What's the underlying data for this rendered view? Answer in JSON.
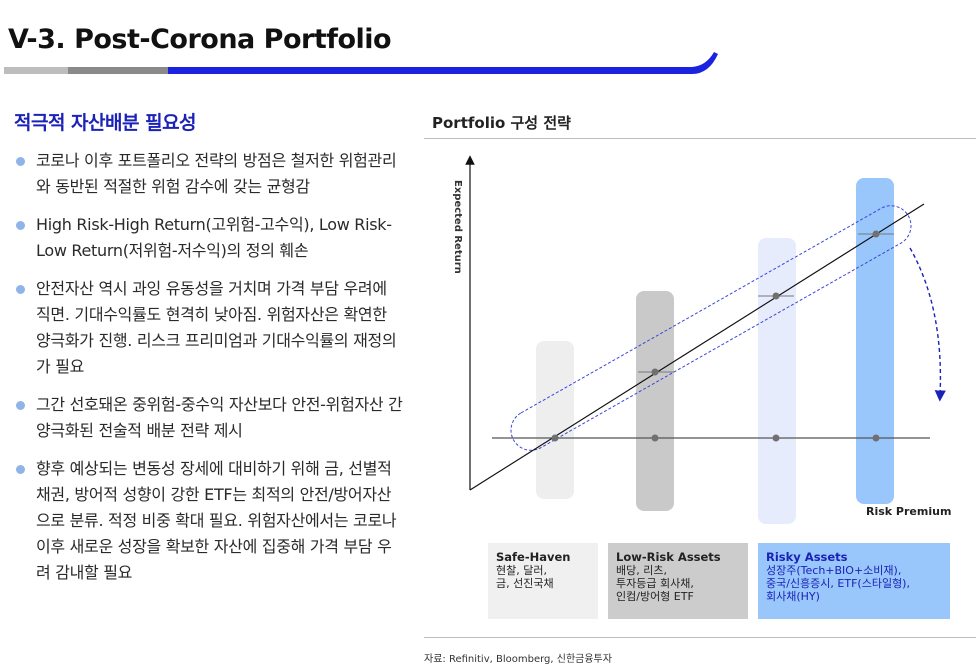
{
  "slide": {
    "title": "V-3. Post-Corona Portfolio"
  },
  "left": {
    "section_title": "적극적 자산배분 필요성",
    "bullets": [
      "코로나 이후 포트폴리오 전략의 방점은 철저한 위험관리와 동반된 적절한 위험 감수에 갖는 균형감",
      "High Risk-High Return(고위험-고수익), Low Risk-Low Return(저위험-저수익)의 정의 훼손",
      "안전자산 역시 과잉 유동성을 거치며 가격 부담 우려에 직면. 기대수익률도 현격히 낮아짐. 위험자산은 확연한 양극화가 진행. 리스크 프리미엄과 기대수익률의 재정의가 필요",
      "그간 선호돼온 중위험-중수익 자산보다 안전-위험자산 간 양극화된 전술적 배분 전략 제시",
      "향후 예상되는 변동성 장세에 대비하기 위해 금, 선별적 채권, 방어적 성향이 강한 ETF는 최적의 안전/방어자산으로 분류. 적정 비중 확대 필요. 위험자산에서는 코로나 이후 새로운 성장을 확보한 자산에 집중해 가격 부담 우려 감내할 필요"
    ]
  },
  "chart": {
    "title": "Portfolio 구성 전략",
    "ylabel": "Expected Return",
    "risk_premium_label": "Risk Premium",
    "colors": {
      "safe": "#eeeeee",
      "low": "#cccccc",
      "mid": "#e7ecfd",
      "risky": "#99c6fb",
      "accent": "#1b22b8"
    },
    "boxes": [
      {
        "name": "Safe-Haven",
        "desc": [
          "현찰, 달러,",
          "금, 선진국채"
        ]
      },
      {
        "name": "Low-Risk Assets",
        "desc": [
          "배당, 리츠,",
          "투자등급 회사채,",
          "인컴/방어형 ETF"
        ]
      },
      {
        "name": "Risky Assets",
        "desc": [
          "성장주(Tech+BIO+소비재),",
          "중국/신흥증시, ETF(스타일형),",
          "회사채(HY)"
        ]
      }
    ]
  },
  "source": "자료: Refinitiv, Bloomberg, 신한금융투자"
}
